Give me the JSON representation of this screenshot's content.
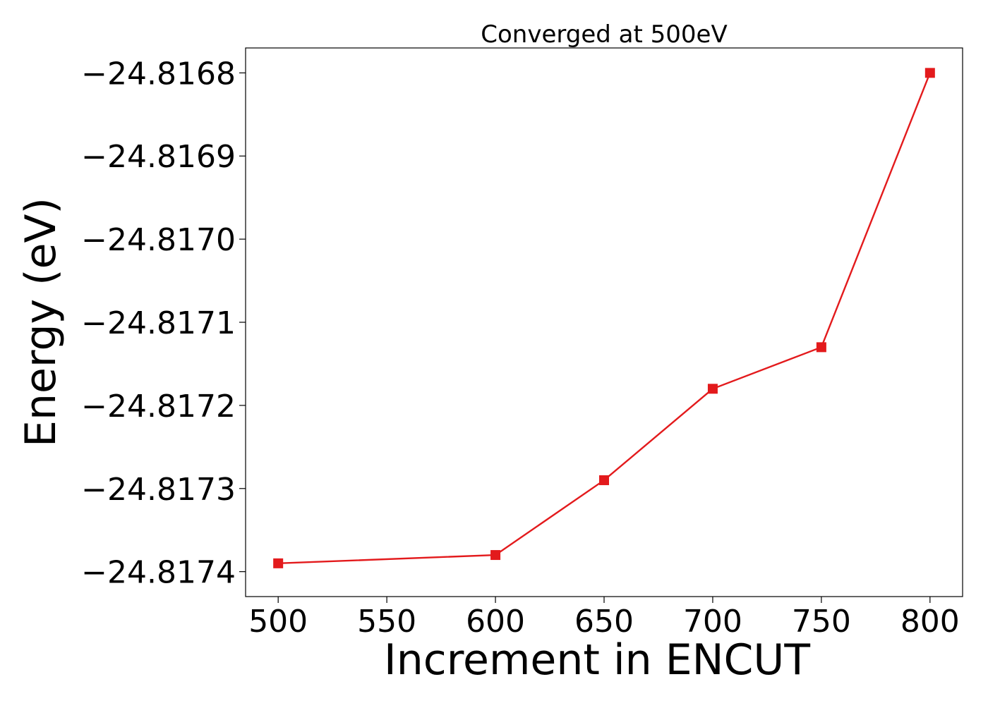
{
  "chart_data": {
    "type": "line",
    "title": "Converged at 500eV",
    "xlabel": "Increment in ENCUT",
    "ylabel": "Energy (eV)",
    "xlim": [
      485,
      815
    ],
    "ylim": [
      -24.81743,
      -24.81677
    ],
    "x_ticks": [
      500,
      550,
      600,
      650,
      700,
      750,
      800
    ],
    "y_ticks": [
      -24.8168,
      -24.8169,
      -24.817,
      -24.8171,
      -24.8172,
      -24.8173,
      -24.8174
    ],
    "y_tick_labels": [
      "−24.8168",
      "−24.8169",
      "−24.8170",
      "−24.8171",
      "−24.8172",
      "−24.8173",
      "−24.8174"
    ],
    "grid": false,
    "series": [
      {
        "color": "#e31a1c",
        "marker": "square",
        "x": [
          500,
          600,
          650,
          700,
          750,
          800
        ],
        "y": [
          -24.81739,
          -24.81738,
          -24.81729,
          -24.81718,
          -24.81713,
          -24.8168
        ]
      }
    ]
  }
}
